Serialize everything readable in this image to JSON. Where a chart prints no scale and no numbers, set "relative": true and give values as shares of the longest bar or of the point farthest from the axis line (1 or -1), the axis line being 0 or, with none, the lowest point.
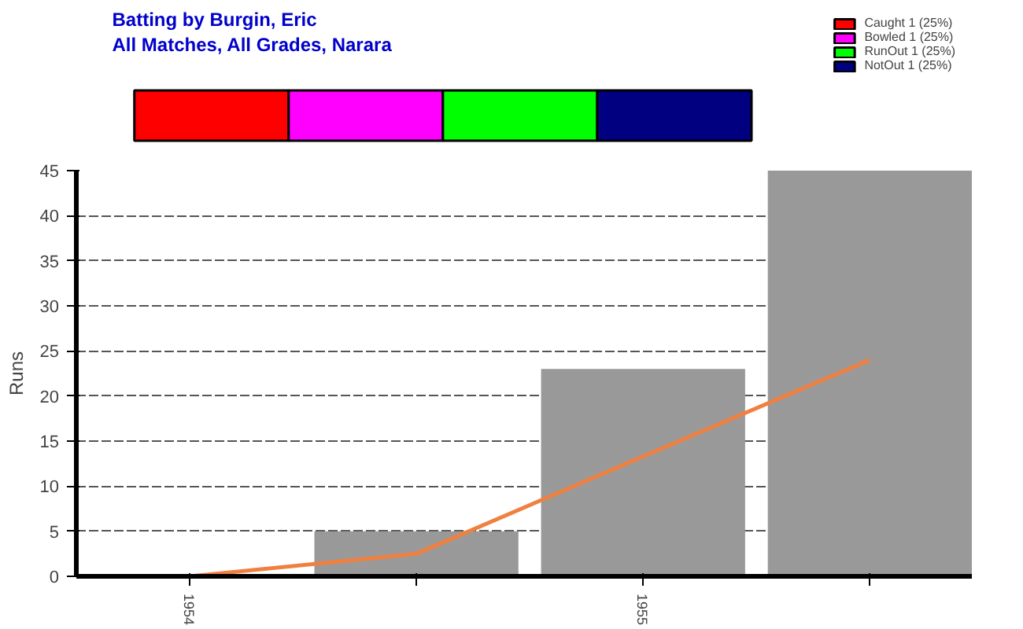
{
  "chart_data": [
    {
      "type": "bar",
      "title": "Batting by Burgin, Eric",
      "subtitle": "All Matches, All Grades, Narara",
      "orientation": "horizontal",
      "stacked": true,
      "relative": true,
      "categories": [
        null
      ],
      "legend": "top right",
      "series": [
        {
          "name": "Caught 1 (25%)",
          "color": "#ff0000",
          "values": [
            0.25
          ]
        },
        {
          "name": "Bowled 1 (25%)",
          "color": "#ff00ff",
          "values": [
            0.25
          ]
        },
        {
          "name": "RunOut 1 (25%)",
          "color": "#00ff00",
          "values": [
            0.25
          ]
        },
        {
          "name": "NotOut 1 (25%)",
          "color": "#000080",
          "values": [
            0.25
          ]
        }
      ]
    },
    {
      "type": "bar",
      "ylabel": "Runs",
      "categories": [
        "1954",
        null,
        "1955",
        null
      ],
      "ylim": [
        0,
        45
      ],
      "yticks": [
        0,
        5,
        10,
        15,
        20,
        25,
        30,
        35,
        40,
        45
      ],
      "grid": "y",
      "legend": false,
      "series": [
        {
          "type": "bar",
          "color": "#999999",
          "values": [
            0,
            5,
            23,
            45
          ]
        },
        {
          "type": "line",
          "color": "#f08040",
          "values": [
            0,
            2.5,
            13.3,
            24
          ]
        }
      ]
    }
  ]
}
